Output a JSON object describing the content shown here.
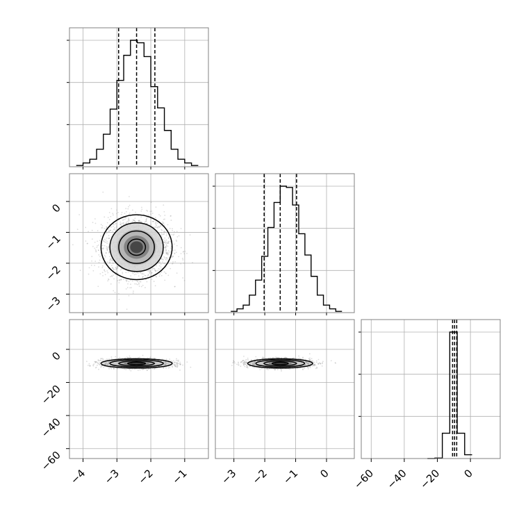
{
  "chart_data": {
    "type": "corner",
    "title": "",
    "grid": true,
    "colors": {
      "line": "#000000",
      "grid": "#b0b0b0",
      "points": "#9a9a9a",
      "frame": "#808080"
    },
    "parameters": [
      {
        "index": 0,
        "range": [
          -4.4,
          -0.3
        ],
        "ticks": [
          -4,
          -3,
          -2,
          -1
        ],
        "quantiles": [
          -2.95,
          -2.42,
          -1.88
        ]
      },
      {
        "index": 1,
        "range": [
          -3.6,
          0.9
        ],
        "ticks": [
          -3,
          -2,
          -1,
          0
        ],
        "quantiles": [
          -2.02,
          -1.5,
          -0.97
        ]
      },
      {
        "index": 2,
        "range": [
          -66,
          18
        ],
        "ticks": [
          -60,
          -40,
          -20,
          0
        ],
        "quantiles": [
          -10.8,
          -9.6,
          -8.3
        ]
      }
    ],
    "histograms": [
      {
        "param": 0,
        "bin_edges": [
          -4.2,
          -4.0,
          -3.8,
          -3.6,
          -3.4,
          -3.2,
          -3.0,
          -2.8,
          -2.6,
          -2.4,
          -2.2,
          -2.0,
          -1.8,
          -1.6,
          -1.4,
          -1.2,
          -1.0,
          -0.8,
          -0.6
        ],
        "counts": [
          1,
          3,
          6,
          14,
          26,
          46,
          69,
          89,
          101,
          99,
          88,
          64,
          47,
          29,
          14,
          6,
          3,
          1
        ]
      },
      {
        "param": 1,
        "bin_edges": [
          -3.1,
          -2.9,
          -2.7,
          -2.5,
          -2.3,
          -2.1,
          -1.9,
          -1.7,
          -1.5,
          -1.3,
          -1.1,
          -0.9,
          -0.7,
          -0.5,
          -0.3,
          -0.1,
          0.1,
          0.3,
          0.5
        ],
        "counts": [
          1,
          3,
          6,
          14,
          26,
          45,
          68,
          88,
          101,
          100,
          86,
          63,
          46,
          29,
          14,
          6,
          3,
          1
        ]
      },
      {
        "param": 2,
        "bin_edges": [
          -26,
          -21.5,
          -17,
          -12.5,
          -8,
          -3.5,
          1
        ],
        "counts": [
          0,
          0.4,
          20,
          100,
          20,
          3
        ]
      }
    ],
    "scatter_panels": [
      {
        "x_param": 0,
        "y_param": 1,
        "center": [
          -2.42,
          -1.48
        ],
        "spread": [
          0.5,
          0.5
        ],
        "contour_scale": [
          1,
          1
        ]
      },
      {
        "x_param": 0,
        "y_param": 2,
        "center": [
          -2.42,
          -8.5
        ],
        "spread": [
          0.5,
          1.35
        ],
        "contour_scale": [
          1,
          1
        ]
      },
      {
        "x_param": 1,
        "y_param": 2,
        "center": [
          -1.5,
          -8.5
        ],
        "spread": [
          0.5,
          1.35
        ],
        "contour_scale": [
          1,
          1
        ]
      }
    ],
    "contour_sigmas": [
      0.5,
      1.0,
      1.5,
      2.0
    ]
  }
}
